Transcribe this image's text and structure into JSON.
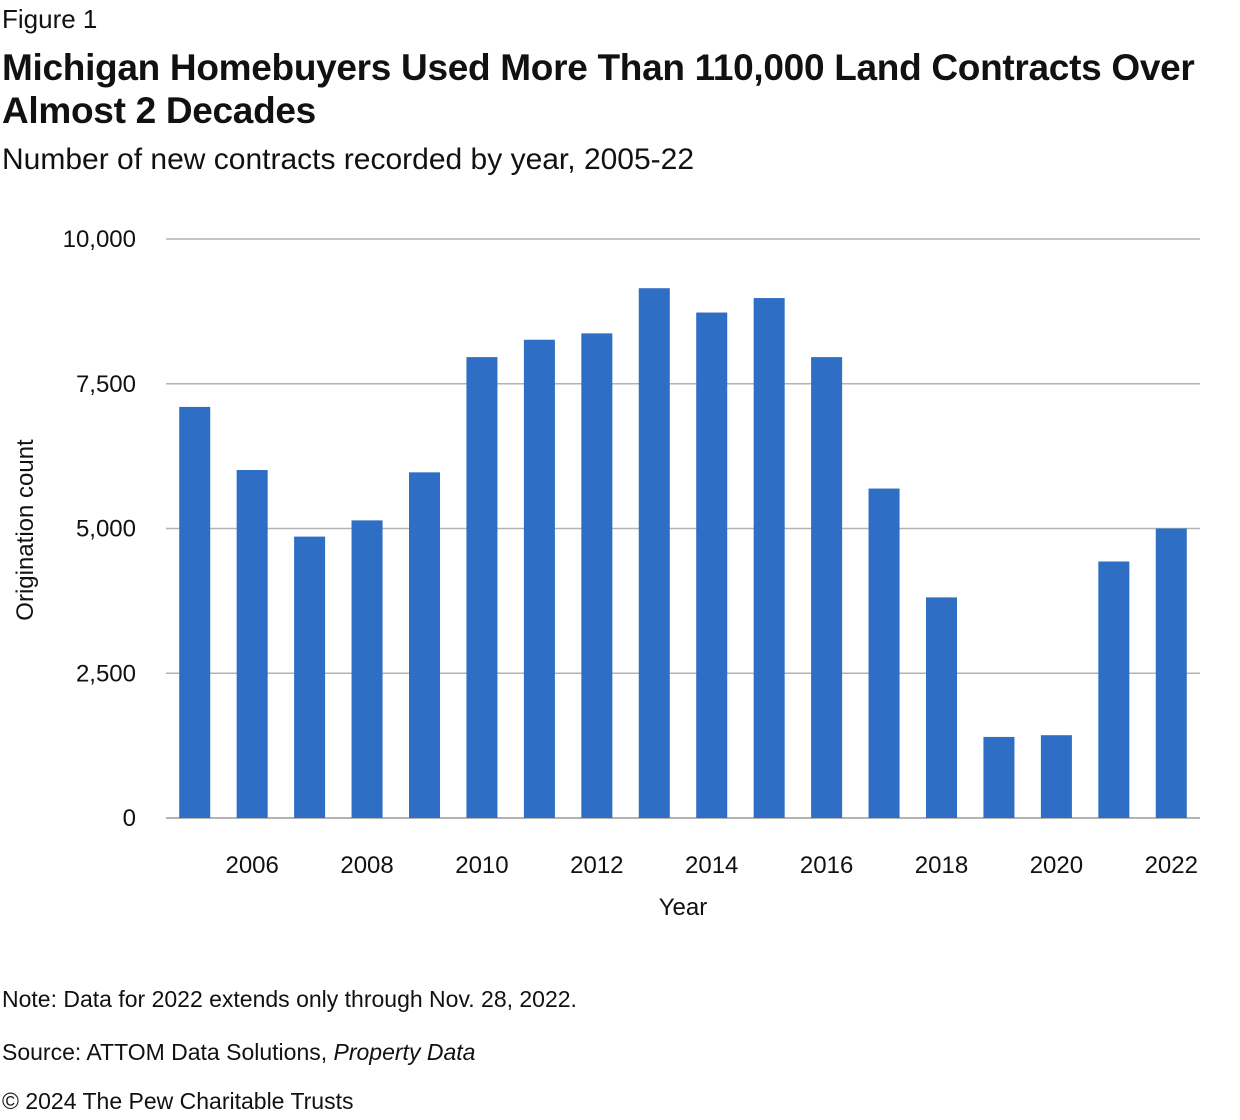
{
  "header": {
    "figure_label": "Figure 1",
    "title": "Michigan Homebuyers Used More Than 110,000 Land Contracts Over Almost 2 Decades",
    "subtitle": "Number of new contracts recorded by year, 2005-22"
  },
  "chart_data": {
    "type": "bar",
    "title": "Michigan Homebuyers Used More Than 110,000 Land Contracts Over Almost 2 Decades",
    "subtitle": "Number of new contracts recorded by year, 2005-22",
    "xlabel": "Year",
    "ylabel": "Origination count",
    "categories": [
      "2005",
      "2006",
      "2007",
      "2008",
      "2009",
      "2010",
      "2011",
      "2012",
      "2013",
      "2014",
      "2015",
      "2016",
      "2017",
      "2018",
      "2019",
      "2020",
      "2021",
      "2022"
    ],
    "x_tick_labels": [
      "2006",
      "2008",
      "2010",
      "2012",
      "2014",
      "2016",
      "2018",
      "2020",
      "2022"
    ],
    "values": [
      7100,
      6010,
      4860,
      5140,
      5970,
      7960,
      8260,
      8370,
      9150,
      8730,
      8980,
      7960,
      5690,
      3810,
      1400,
      1430,
      4430,
      5000
    ],
    "ylim": [
      0,
      10000
    ],
    "y_ticks": [
      0,
      2500,
      5000,
      7500,
      10000
    ],
    "y_tick_labels": [
      "0",
      "2,500",
      "5,000",
      "7,500",
      "10,000"
    ],
    "grid": true,
    "bar_color": "#2e6ec4",
    "gridline_color": "#b3b3b3"
  },
  "footer": {
    "note": "Note: Data for 2022 extends only through Nov. 28, 2022.",
    "source_prefix": "Source: ATTOM Data Solutions, ",
    "source_italic": "Property Data",
    "copyright": "© 2024 The Pew Charitable Trusts"
  }
}
